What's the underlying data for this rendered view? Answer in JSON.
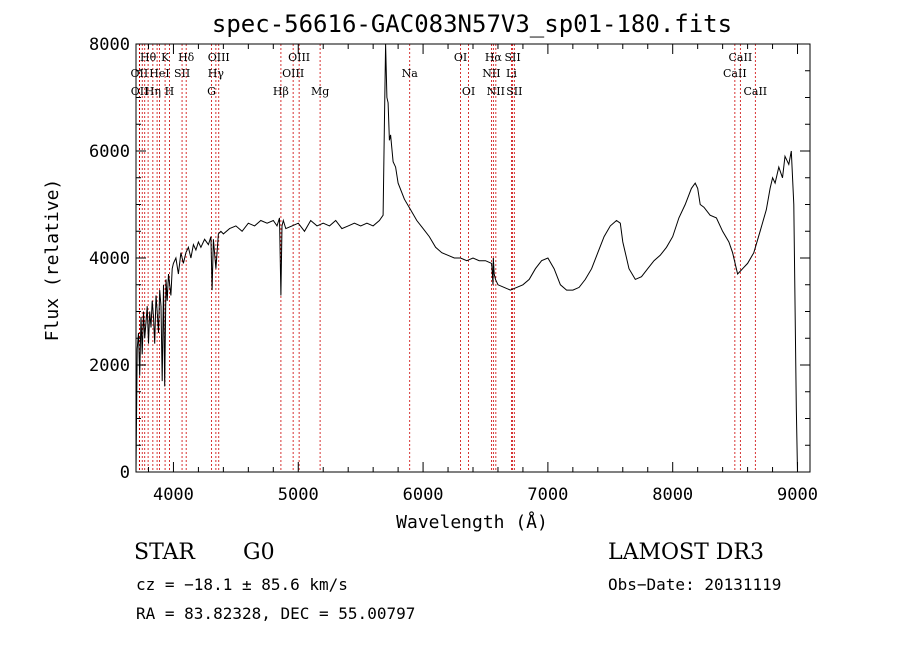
{
  "chart_data": {
    "type": "line",
    "title": "spec-56616-GAC083N57V3_sp01-180.fits",
    "xlabel": "Wavelength (Å)",
    "ylabel": "Flux (relative)",
    "xlim": [
      3700,
      9100
    ],
    "ylim": [
      0,
      8000
    ],
    "xticks": [
      4000,
      5000,
      6000,
      7000,
      8000,
      9000
    ],
    "yticks": [
      0,
      2000,
      4000,
      6000,
      8000
    ],
    "series": [
      {
        "name": "spectrum",
        "x": [
          3700,
          3710,
          3720,
          3730,
          3740,
          3750,
          3760,
          3770,
          3780,
          3790,
          3800,
          3810,
          3820,
          3830,
          3840,
          3850,
          3860,
          3870,
          3880,
          3890,
          3900,
          3910,
          3920,
          3930,
          3940,
          3950,
          3960,
          3970,
          3980,
          3990,
          4000,
          4020,
          4040,
          4060,
          4080,
          4100,
          4120,
          4140,
          4160,
          4180,
          4200,
          4220,
          4250,
          4280,
          4300,
          4310,
          4320,
          4340,
          4360,
          4380,
          4400,
          4450,
          4500,
          4550,
          4600,
          4650,
          4700,
          4750,
          4800,
          4830,
          4850,
          4861,
          4870,
          4880,
          4900,
          4950,
          5000,
          5050,
          5100,
          5150,
          5200,
          5250,
          5300,
          5350,
          5400,
          5450,
          5500,
          5550,
          5600,
          5650,
          5680,
          5690,
          5700,
          5710,
          5720,
          5730,
          5740,
          5760,
          5780,
          5800,
          5850,
          5900,
          5950,
          6000,
          6050,
          6100,
          6150,
          6200,
          6250,
          6300,
          6350,
          6400,
          6450,
          6500,
          6550,
          6560,
          6563,
          6570,
          6580,
          6600,
          6650,
          6700,
          6750,
          6800,
          6850,
          6900,
          6950,
          7000,
          7050,
          7100,
          7150,
          7200,
          7250,
          7300,
          7350,
          7400,
          7450,
          7500,
          7550,
          7580,
          7600,
          7620,
          7650,
          7700,
          7750,
          7800,
          7850,
          7900,
          7950,
          8000,
          8050,
          8100,
          8150,
          8180,
          8200,
          8220,
          8250,
          8300,
          8350,
          8400,
          8450,
          8480,
          8500,
          8520,
          8540,
          8560,
          8600,
          8650,
          8700,
          8750,
          8780,
          8800,
          8820,
          8850,
          8880,
          8900,
          8930,
          8950,
          8970,
          8990,
          9000
        ],
        "values": [
          0,
          2300,
          2600,
          1800,
          2900,
          2200,
          3000,
          2500,
          2800,
          3100,
          2400,
          3000,
          2700,
          3200,
          2900,
          2400,
          3300,
          3000,
          2600,
          3400,
          3100,
          1700,
          3500,
          1600,
          3600,
          3200,
          3700,
          3500,
          3300,
          3800,
          3900,
          4000,
          3700,
          4100,
          3900,
          4100,
          4200,
          4000,
          4250,
          4150,
          4300,
          4200,
          4350,
          4250,
          4400,
          3400,
          4350,
          3800,
          4450,
          4500,
          4450,
          4550,
          4600,
          4500,
          4650,
          4600,
          4700,
          4650,
          4700,
          4600,
          4750,
          3300,
          4600,
          4700,
          4550,
          4600,
          4650,
          4500,
          4700,
          4600,
          4650,
          4600,
          4700,
          4550,
          4600,
          4650,
          4600,
          4650,
          4600,
          4700,
          4800,
          6500,
          8000,
          7000,
          6900,
          6200,
          6300,
          5800,
          5700,
          5400,
          5100,
          4900,
          4700,
          4550,
          4400,
          4200,
          4100,
          4050,
          4000,
          4000,
          3950,
          4000,
          3950,
          3950,
          3900,
          3500,
          4000,
          3700,
          3600,
          3500,
          3450,
          3400,
          3450,
          3500,
          3600,
          3800,
          3950,
          4000,
          3800,
          3500,
          3400,
          3400,
          3450,
          3600,
          3800,
          4100,
          4400,
          4600,
          4700,
          4650,
          4300,
          4100,
          3800,
          3600,
          3650,
          3800,
          3950,
          4050,
          4200,
          4400,
          4750,
          5000,
          5300,
          5400,
          5300,
          5000,
          4950,
          4800,
          4750,
          4500,
          4300,
          4100,
          3900,
          3700,
          3750,
          3800,
          3900,
          4100,
          4500,
          4900,
          5300,
          5500,
          5400,
          5700,
          5500,
          5900,
          5750,
          6000,
          5000,
          1200,
          0
        ]
      }
    ],
    "line_groups": [
      {
        "row": 0,
        "items": [
          {
            "label": "Hθ",
            "x": 3797
          },
          {
            "label": "K",
            "x": 3934
          },
          {
            "label": "Hδ",
            "x": 4102
          },
          {
            "label": "OIII",
            "x": 4363
          },
          {
            "label": "OIII",
            "x": 5007
          },
          {
            "label": "OI",
            "x": 6300
          },
          {
            "label": "Hα",
            "x": 6563
          },
          {
            "label": "SII",
            "x": 6717
          },
          {
            "label": "CaII",
            "x": 8542
          }
        ]
      },
      {
        "row": 1,
        "items": [
          {
            "label": "OII",
            "x": 3727
          },
          {
            "label": "HeI",
            "x": 3888
          },
          {
            "label": "SII",
            "x": 4069
          },
          {
            "label": "Hγ",
            "x": 4340
          },
          {
            "label": "OIII",
            "x": 4959
          },
          {
            "label": "Na",
            "x": 5893
          },
          {
            "label": "NII",
            "x": 6548
          },
          {
            "label": "Li",
            "x": 6708
          },
          {
            "label": "CaII",
            "x": 8498
          }
        ]
      },
      {
        "row": 2,
        "items": [
          {
            "label": "OII",
            "x": 3729
          },
          {
            "label": "Hη",
            "x": 3835
          },
          {
            "label": "H",
            "x": 3968
          },
          {
            "label": "G",
            "x": 4305
          },
          {
            "label": "Hβ",
            "x": 4861
          },
          {
            "label": "Mg",
            "x": 5175
          },
          {
            "label": "OI",
            "x": 6364
          },
          {
            "label": "NII",
            "x": 6583
          },
          {
            "label": "SII",
            "x": 6731
          },
          {
            "label": "CaII",
            "x": 8662
          }
        ]
      }
    ],
    "marker_lines": [
      3727,
      3729,
      3750,
      3770,
      3797,
      3835,
      3869,
      3889,
      3933,
      3968,
      4069,
      4102,
      4305,
      4340,
      4363,
      4861,
      4959,
      5007,
      5175,
      5893,
      6300,
      6364,
      6548,
      6563,
      6583,
      6708,
      6717,
      6731,
      8498,
      8542,
      8662
    ],
    "colors": {
      "spectrum": "#000000",
      "marker": "#cc0000",
      "axes": "#000000"
    }
  },
  "info": {
    "class": "STAR",
    "subclass": "G0",
    "survey": "LAMOST DR3",
    "cz": "cz = −18.1 ± 85.6 km/s",
    "obs_date": "Obs−Date: 20131119",
    "coords": "RA =  83.82328, DEC =  55.00797"
  }
}
